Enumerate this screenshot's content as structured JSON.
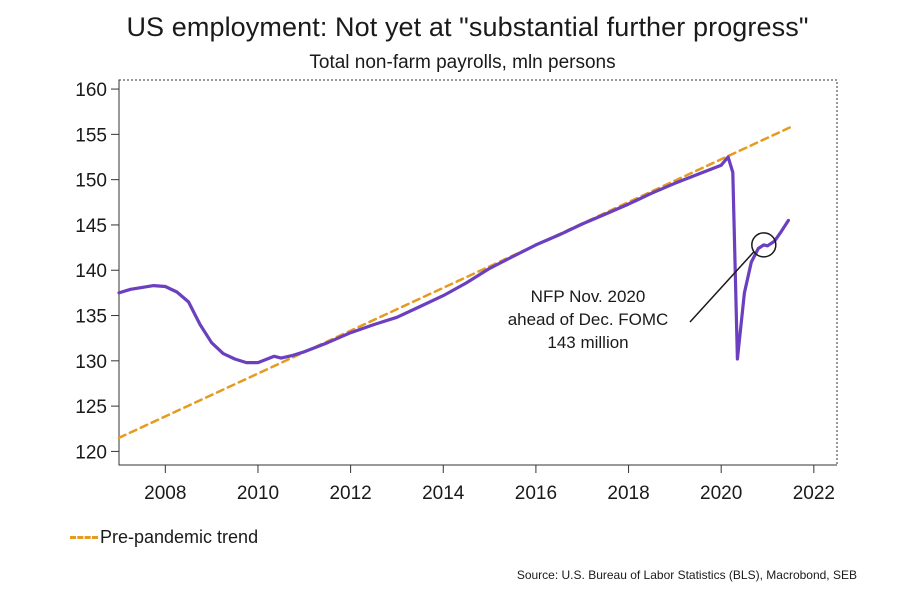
{
  "title": "US employment: Not yet at \"substantial further progress\"",
  "subtitle": "Total non-farm payrolls, mln persons",
  "legend": {
    "trend_label": "Pre-pandemic trend"
  },
  "source": "Source: U.S. Bureau of Labor Statistics (BLS), Macrobond, SEB",
  "colors": {
    "series": "#6a3fc0",
    "trend": "#e69a1f",
    "axis": "#333333"
  },
  "chart_data": {
    "type": "line",
    "title": "US employment: Not yet at \"substantial further progress\"",
    "subtitle": "Total non-farm payrolls, mln persons",
    "xlim": [
      2007,
      2022.5
    ],
    "ylim": [
      118.5,
      161
    ],
    "x_ticks": [
      2008,
      2010,
      2012,
      2014,
      2016,
      2018,
      2020,
      2022
    ],
    "y_ticks": [
      120,
      125,
      130,
      135,
      140,
      145,
      150,
      155,
      160
    ],
    "series": [
      {
        "name": "Total non-farm payrolls",
        "style": "solid",
        "x": [
          2007.0,
          2007.25,
          2007.5,
          2007.75,
          2008.0,
          2008.25,
          2008.5,
          2008.75,
          2009.0,
          2009.25,
          2009.5,
          2009.75,
          2010.0,
          2010.2,
          2010.35,
          2010.5,
          2010.75,
          2011.0,
          2011.5,
          2012.0,
          2012.5,
          2013.0,
          2013.5,
          2014.0,
          2014.5,
          2015.0,
          2015.5,
          2016.0,
          2016.5,
          2017.0,
          2017.5,
          2018.0,
          2018.5,
          2019.0,
          2019.5,
          2020.0,
          2020.15,
          2020.25,
          2020.35,
          2020.5,
          2020.65,
          2020.8,
          2020.92,
          2021.0,
          2021.15,
          2021.3,
          2021.45
        ],
        "values": [
          137.5,
          137.9,
          138.1,
          138.3,
          138.2,
          137.6,
          136.5,
          134.0,
          132.0,
          130.8,
          130.2,
          129.8,
          129.8,
          130.2,
          130.5,
          130.3,
          130.6,
          131.0,
          132.0,
          133.1,
          134.0,
          134.8,
          136.0,
          137.2,
          138.6,
          140.2,
          141.5,
          142.8,
          143.9,
          145.1,
          146.2,
          147.3,
          148.5,
          149.6,
          150.6,
          151.6,
          152.5,
          150.8,
          130.2,
          137.5,
          140.9,
          142.4,
          142.8,
          142.7,
          143.2,
          144.3,
          145.5
        ]
      },
      {
        "name": "Pre-pandemic trend",
        "style": "dashed",
        "x": [
          2007.0,
          2021.5
        ],
        "values": [
          121.5,
          155.8
        ]
      }
    ],
    "annotations": [
      {
        "lines": [
          "NFP Nov. 2020",
          "ahead of Dec. FOMC",
          "143 million"
        ],
        "target_x": 2020.92,
        "target_y": 142.8
      }
    ]
  }
}
